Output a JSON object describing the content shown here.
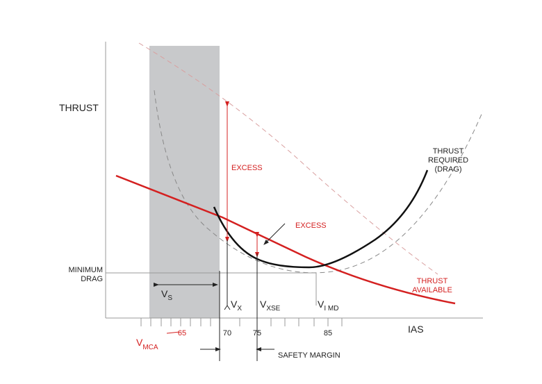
{
  "axis_labels": {
    "y": "THRUST",
    "x": "IAS"
  },
  "annotations": {
    "minimum_drag": [
      "MINIMUM",
      "DRAG"
    ],
    "excess_upper": "EXCESS",
    "excess_lower": "EXCESS",
    "thrust_required": [
      "THRUST",
      "REQUIRED",
      "(DRAG)"
    ],
    "thrust_available": [
      "THRUST",
      "AVAILABLE"
    ],
    "safety_margin": "SAFETY MARGIN"
  },
  "speeds": {
    "vs": {
      "symbol": "V",
      "subscript": "S"
    },
    "vx": {
      "symbol": "V",
      "subscript": "X"
    },
    "vxse": {
      "symbol": "V",
      "subscript": "XSE"
    },
    "vimd": {
      "symbol": "V",
      "subscript": "I MD"
    },
    "vmca": {
      "symbol": "V",
      "subscript": "MCA"
    }
  },
  "tick_labels": [
    "65",
    "70",
    "75",
    "85"
  ]
}
